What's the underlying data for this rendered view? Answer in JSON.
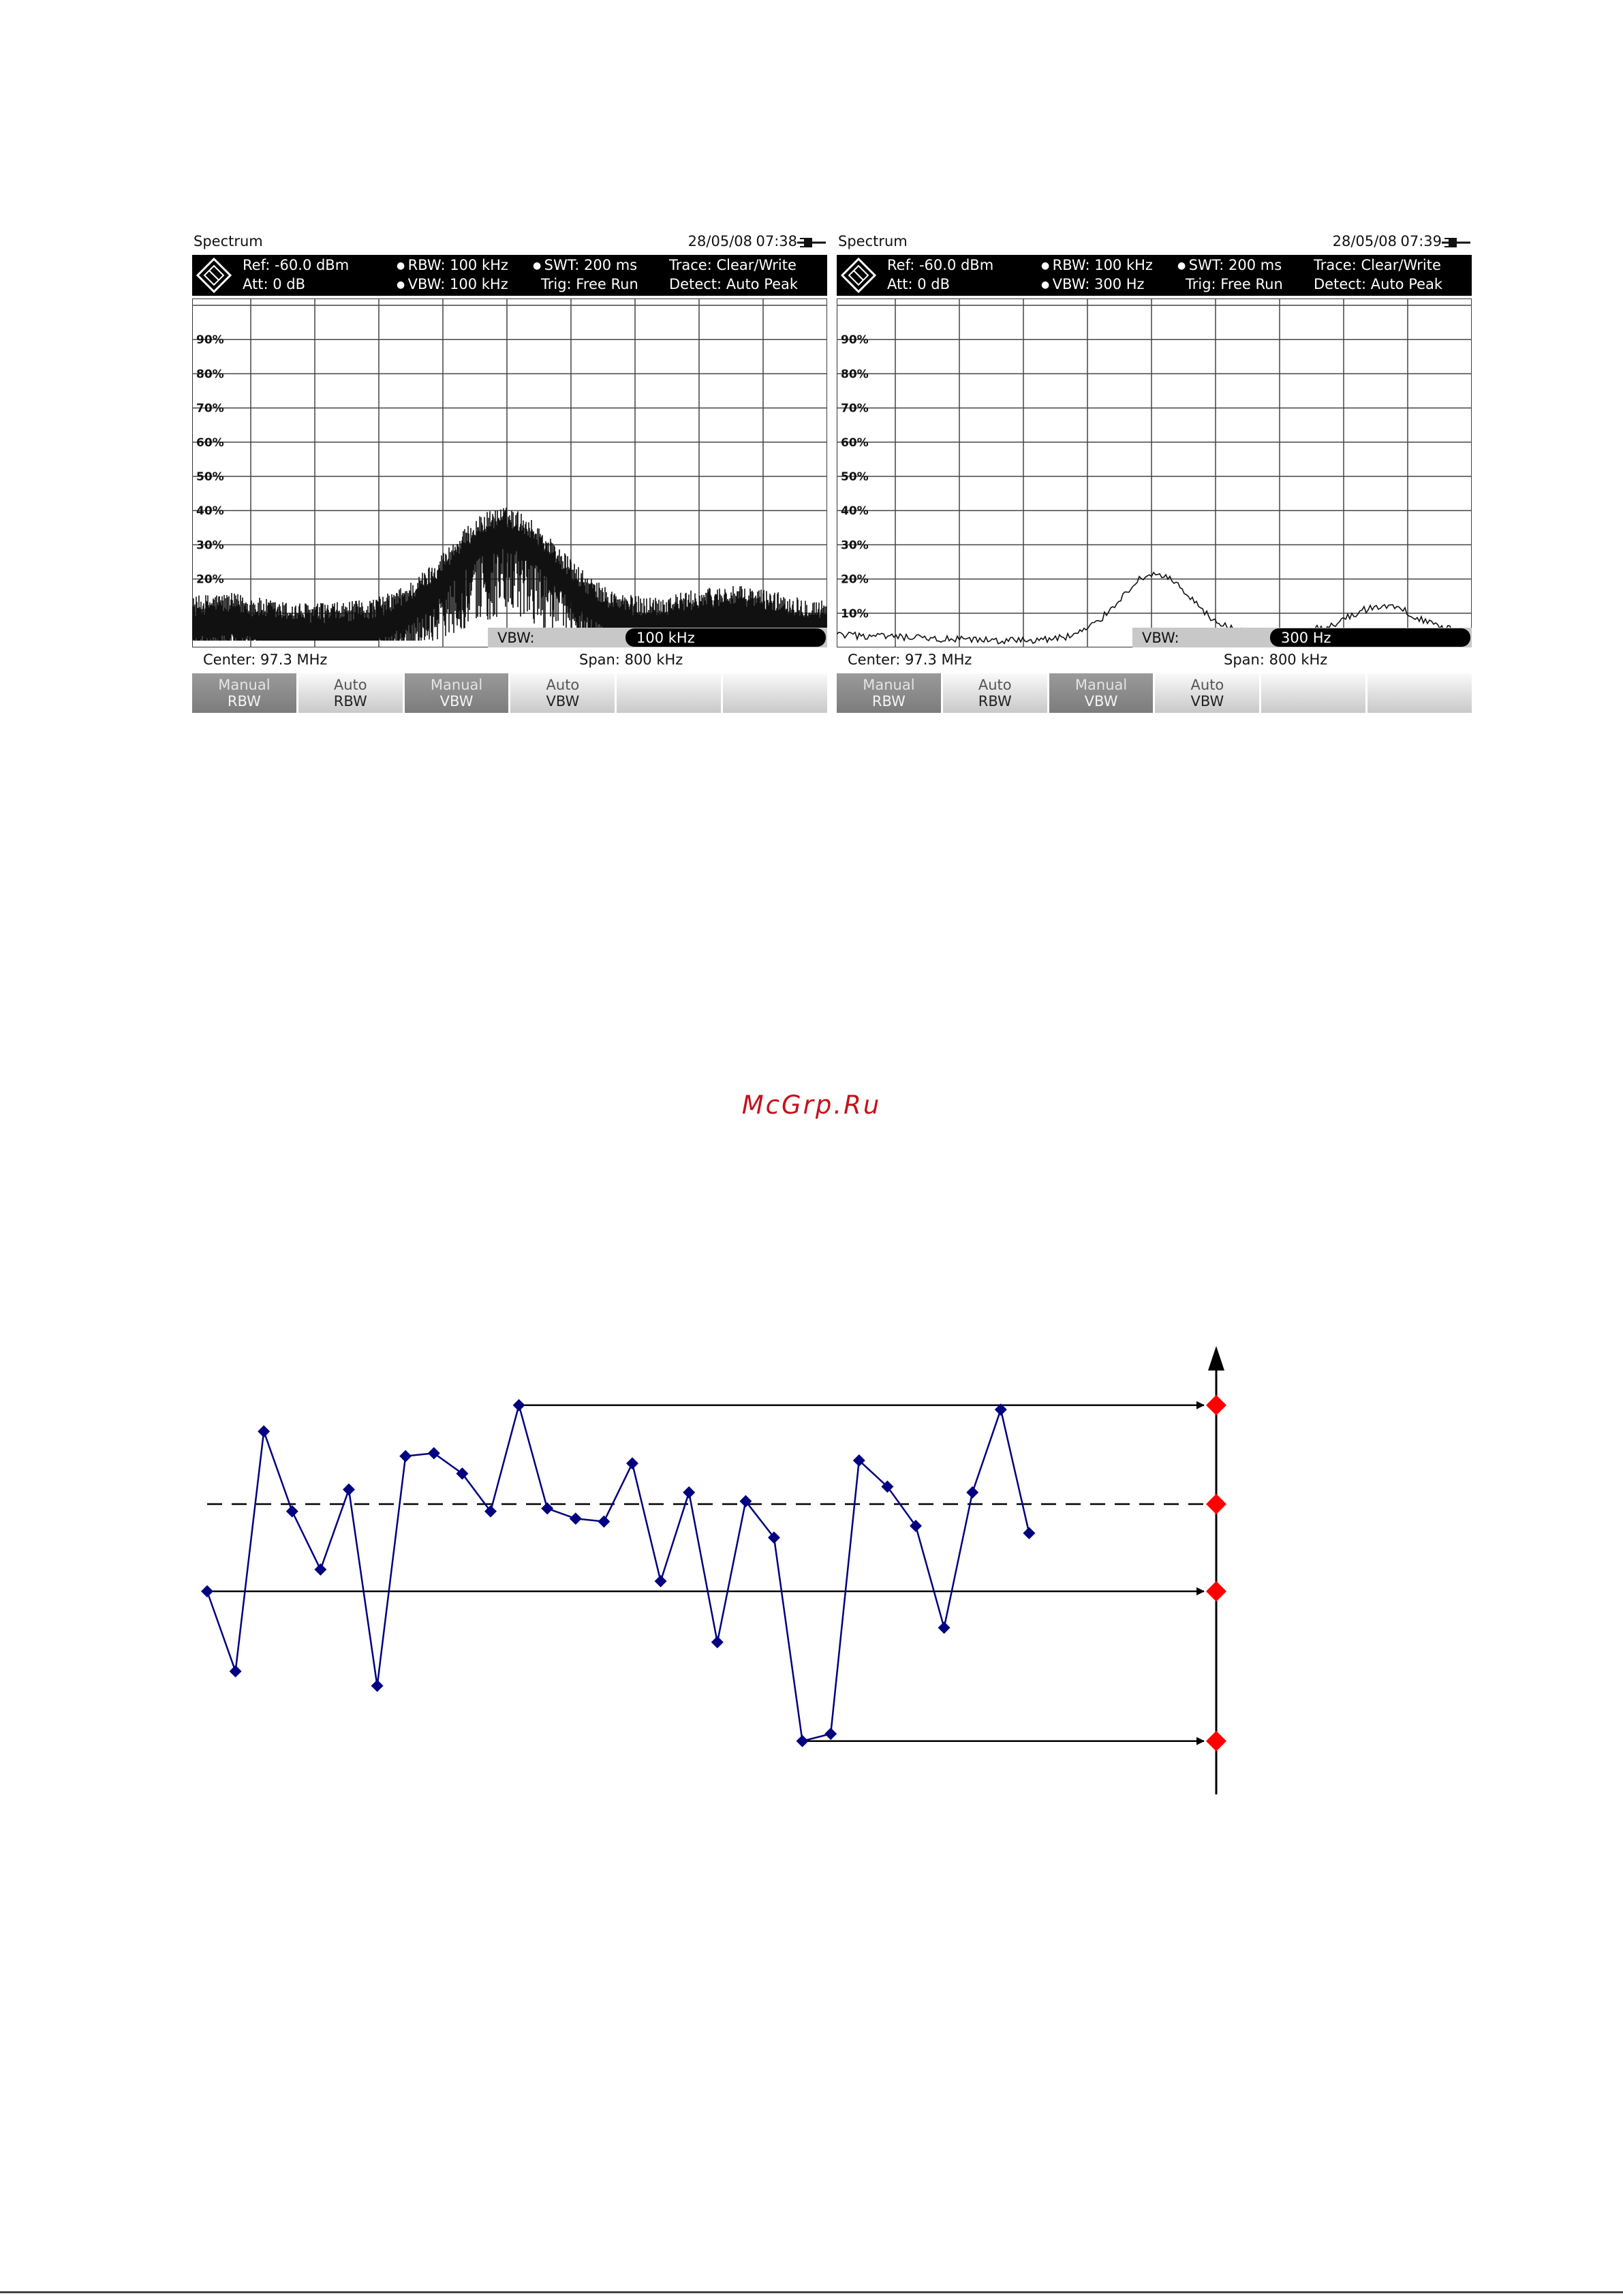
{
  "screens": [
    {
      "mode": "Spectrum",
      "date": "28/05/08",
      "time": "07:38",
      "params": {
        "ref": "Ref:  -60.0 dBm",
        "att": "Att:  0 dB",
        "rbw": "RBW:  100 kHz",
        "vbw": "VBW:  100 kHz",
        "swt": "SWT:  200 ms",
        "trig": "Trig:  Free Run",
        "trace": "Trace:  Clear/Write",
        "detect": "Detect: Auto Peak"
      },
      "y_ticks": [
        "90%",
        "80%",
        "70%",
        "60%",
        "50%",
        "40%",
        "30%",
        "20%",
        "10%"
      ],
      "entry_label": "VBW:",
      "entry_value": "100 kHz",
      "center": "Center:  97.3 MHz",
      "span": "Span:    800 kHz",
      "trace_style": "noisy",
      "softkeys": [
        {
          "top": "Manual",
          "bottom": "RBW",
          "active": true
        },
        {
          "top": "Auto",
          "bottom": "RBW",
          "active": false
        },
        {
          "top": "Manual",
          "bottom": "VBW",
          "active": true
        },
        {
          "top": "Auto",
          "bottom": "VBW",
          "active": false
        },
        {
          "top": "",
          "bottom": "",
          "active": false
        },
        {
          "top": "",
          "bottom": "",
          "active": false
        }
      ]
    },
    {
      "mode": "Spectrum",
      "date": "28/05/08",
      "time": "07:39",
      "params": {
        "ref": "Ref:  -60.0 dBm",
        "att": "Att:  0 dB",
        "rbw": "RBW:  100 kHz",
        "vbw": "VBW:  300 Hz",
        "swt": "SWT:  200 ms",
        "trig": "Trig:  Free Run",
        "trace": "Trace:  Clear/Write",
        "detect": "Detect: Auto Peak"
      },
      "y_ticks": [
        "90%",
        "80%",
        "70%",
        "60%",
        "50%",
        "40%",
        "30%",
        "20%",
        "10%"
      ],
      "entry_label": "VBW:",
      "entry_value": "300 Hz",
      "center": "Center:  97.3 MHz",
      "span": "Span:    800 kHz",
      "trace_style": "smooth",
      "softkeys": [
        {
          "top": "Manual",
          "bottom": "RBW",
          "active": true
        },
        {
          "top": "Auto",
          "bottom": "RBW",
          "active": false
        },
        {
          "top": "Manual",
          "bottom": "VBW",
          "active": true
        },
        {
          "top": "Auto",
          "bottom": "VBW",
          "active": false
        },
        {
          "top": "",
          "bottom": "",
          "active": false
        },
        {
          "top": "",
          "bottom": "",
          "active": false
        }
      ]
    }
  ],
  "watermark": "McGrp.Ru",
  "chart_data": {
    "type": "line",
    "values": [
      -0.6,
      -1.15,
      0.5,
      -0.05,
      -0.45,
      0.1,
      -1.25,
      0.33,
      0.35,
      0.21,
      -0.05,
      0.68,
      -0.03,
      -0.1,
      -0.12,
      0.28,
      -0.53,
      0.08,
      -0.95,
      0.02,
      -0.23,
      -1.63,
      -1.58,
      0.3,
      0.12,
      -0.15,
      -0.85,
      0.08,
      0.65,
      -0.2
    ],
    "reference_lines": [
      {
        "kind": "max",
        "value": 0.68,
        "style": "solid-arrow"
      },
      {
        "kind": "mean",
        "value": 0,
        "style": "dashed"
      },
      {
        "kind": "first",
        "value": -0.6,
        "style": "solid-arrow"
      },
      {
        "kind": "min",
        "value": -1.63,
        "style": "solid-arrow"
      }
    ],
    "ylim": [
      -1.95,
      1.05
    ],
    "series_color": "#000080",
    "marker_color": "#ff0000",
    "line_color": "#000000"
  }
}
